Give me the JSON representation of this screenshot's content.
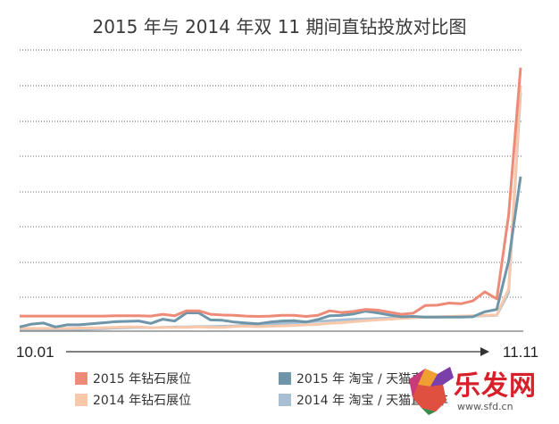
{
  "chart_data": {
    "type": "line",
    "title": "2015 年与 2014 年双 11 期间直钻投放对比图",
    "x_start_label": "10.01",
    "x_end_label": "11.11",
    "y_axis_labels_shown": false,
    "grid": true,
    "legend_position": "bottom",
    "series": [
      {
        "name": "2015 年钻石展位",
        "color": "#ee8a78",
        "values": [
          4.3,
          4.3,
          4.3,
          4.3,
          4.3,
          4.3,
          4.3,
          4.3,
          4.4,
          4.4,
          4.4,
          4.3,
          4.8,
          4.4,
          5.8,
          5.8,
          4.8,
          4.6,
          4.5,
          4.3,
          4.2,
          4.3,
          4.5,
          4.5,
          4.2,
          4.5,
          5.8,
          5.3,
          5.6,
          6.2,
          6.0,
          5.4,
          4.8,
          5.1,
          7.3,
          7.4,
          8.0,
          7.8,
          8.6,
          11.2,
          9.2,
          33,
          75
        ]
      },
      {
        "name": "2014 年钻石展位",
        "color": "#f9c8ab",
        "values": [
          0.8,
          0.8,
          0.8,
          0.8,
          0.8,
          0.9,
          0.9,
          1.0,
          1.1,
          1.2,
          1.2,
          1.0,
          1.1,
          1.1,
          1.1,
          1.2,
          1.1,
          1.1,
          1.3,
          1.4,
          1.3,
          1.4,
          1.5,
          1.6,
          1.8,
          1.9,
          2.2,
          2.4,
          2.7,
          3.0,
          3.2,
          3.4,
          3.6,
          3.8,
          4.0,
          4.1,
          4.2,
          4.3,
          4.4,
          4.5,
          4.6,
          12,
          70
        ]
      },
      {
        "name": "2015 年 淘宝 / 天猫直通车",
        "color": "#6f95a8",
        "values": [
          1.2,
          2.0,
          2.3,
          1.2,
          1.8,
          1.8,
          2.1,
          2.4,
          2.7,
          2.8,
          2.9,
          2.2,
          3.4,
          2.9,
          5.2,
          5.2,
          3.2,
          3.1,
          2.6,
          2.3,
          2.1,
          2.6,
          2.9,
          3.0,
          2.6,
          3.3,
          4.4,
          4.5,
          4.9,
          5.7,
          5.2,
          4.6,
          4.1,
          4.2,
          4.0,
          4.0,
          4.0,
          4.0,
          4.1,
          5.5,
          6.2,
          20,
          44
        ]
      },
      {
        "name": "2014 年 淘宝 / 天猫直通车",
        "color": "#a8bfd3",
        "values": [
          0.3,
          0.3,
          0.3,
          0.3,
          0.4,
          0.5,
          0.6,
          0.7,
          0.9,
          1.0,
          1.1,
          1.0,
          1.1,
          1.2,
          1.2,
          1.3,
          1.3,
          1.4,
          1.5,
          1.7,
          1.8,
          2.0,
          2.2,
          2.4,
          2.6,
          2.8,
          3.0,
          3.2,
          3.4,
          3.5,
          3.6,
          3.7,
          3.8,
          3.9,
          4.0,
          4.0,
          4.1,
          4.2,
          4.3,
          4.4,
          4.5,
          11,
          68
        ]
      }
    ]
  },
  "watermark": {
    "brand_text": "乐发网",
    "url_text": "www.sfd.cn"
  }
}
